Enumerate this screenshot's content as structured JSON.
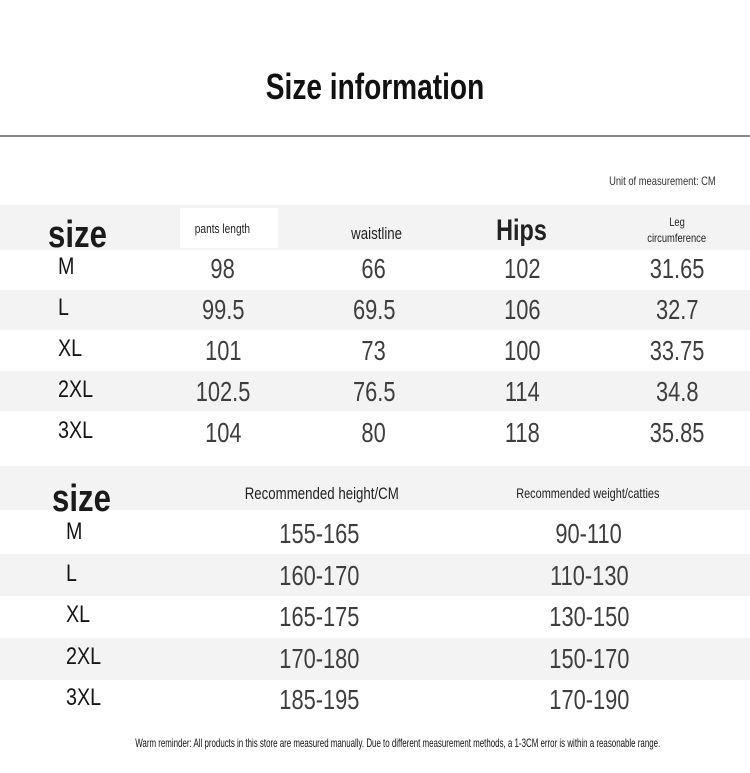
{
  "title": "Size information",
  "unit": "Unit of measurement: CM",
  "table1": {
    "size_label": "size",
    "headers": [
      "pants length",
      "waistline",
      "Hips",
      "Leg",
      "circumference"
    ],
    "rows": [
      {
        "size": "M",
        "values": [
          "98",
          "66",
          "102",
          "31.65"
        ]
      },
      {
        "size": "L",
        "values": [
          "99.5",
          "69.5",
          "106",
          "32.7"
        ]
      },
      {
        "size": "XL",
        "values": [
          "101",
          "73",
          "100",
          "33.75"
        ]
      },
      {
        "size": "2XL",
        "values": [
          "102.5",
          "76.5",
          "114",
          "34.8"
        ]
      },
      {
        "size": "3XL",
        "values": [
          "104",
          "80",
          "118",
          "35.85"
        ]
      }
    ]
  },
  "table2": {
    "size_label": "size",
    "headers": [
      "Recommended height/CM",
      "Recommended weight/catties"
    ],
    "rows": [
      {
        "size": "M",
        "values": [
          "155-165",
          "90-110"
        ]
      },
      {
        "size": "L",
        "values": [
          "160-170",
          "110-130"
        ]
      },
      {
        "size": "XL",
        "values": [
          "165-175",
          "130-150"
        ]
      },
      {
        "size": "2XL",
        "values": [
          "170-180",
          "150-170"
        ]
      },
      {
        "size": "3XL",
        "values": [
          "185-195",
          "170-190"
        ]
      }
    ]
  },
  "footer": "Warm reminder: All products in this store are measured manually. Due to different measurement methods, a 1-3CM error is within a reasonable range."
}
